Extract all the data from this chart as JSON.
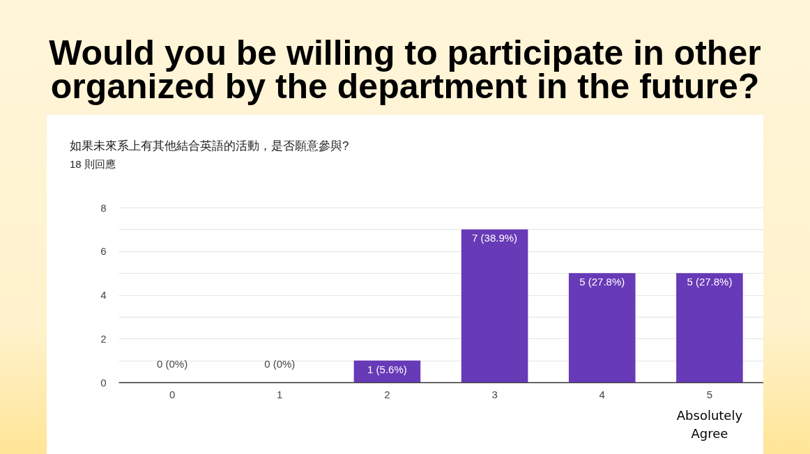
{
  "chart_data": {
    "type": "bar",
    "title": "Would you be willing to participate in other organized by the department in the future?",
    "subtitle": "如果未來系上有其他結合英語的活動，是否願意參與?",
    "annotations": [
      "18 則回應",
      "Absolutely Agree"
    ],
    "categories": [
      "0",
      "1",
      "2",
      "3",
      "4",
      "5"
    ],
    "values": [
      0,
      0,
      1,
      7,
      5,
      5
    ],
    "color": "#673ab7",
    "value_labels": [
      "0 (0%)",
      "0 (0%)",
      "1 (5.6%)",
      "7 (38.9%)",
      "5 (27.8%)",
      "5 (27.8%)"
    ],
    "ylim": [
      0,
      8
    ],
    "yticks": [
      0,
      {
        "value": 1,
        "label": null
      },
      2,
      {
        "value": 3,
        "label": null
      },
      4,
      {
        "value": 5,
        "label": null
      },
      6,
      {
        "value": 7,
        "label": null
      },
      8
    ],
    "grid": "y"
  }
}
